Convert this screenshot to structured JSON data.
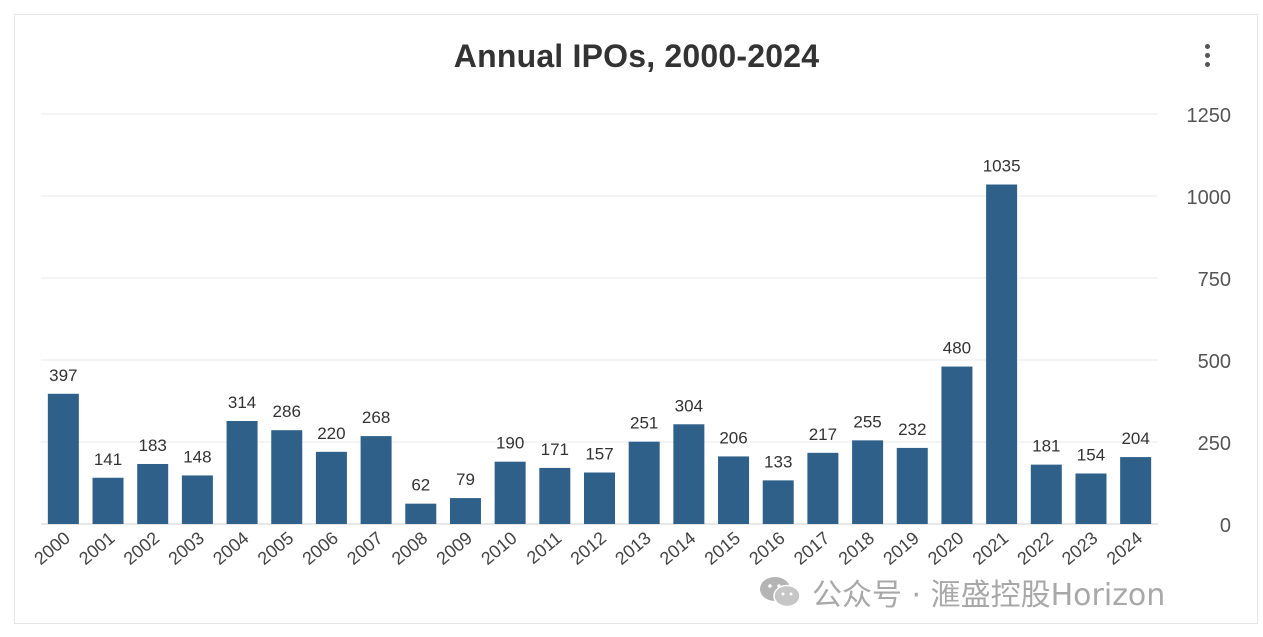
{
  "chart_data": {
    "type": "bar",
    "title": "Annual IPOs, 2000-2024",
    "xlabel": "",
    "ylabel": "",
    "categories": [
      "2000",
      "2001",
      "2002",
      "2003",
      "2004",
      "2005",
      "2006",
      "2007",
      "2008",
      "2009",
      "2010",
      "2011",
      "2012",
      "2013",
      "2014",
      "2015",
      "2016",
      "2017",
      "2018",
      "2019",
      "2020",
      "2021",
      "2022",
      "2023",
      "2024"
    ],
    "values": [
      397,
      141,
      183,
      148,
      314,
      286,
      220,
      268,
      62,
      79,
      190,
      171,
      157,
      251,
      304,
      206,
      133,
      217,
      255,
      232,
      480,
      1035,
      181,
      154,
      204
    ],
    "ylim": [
      0,
      1250
    ],
    "yticks": [
      0,
      250,
      500,
      750,
      1000,
      1250
    ],
    "y_axis_side": "right",
    "grid": true,
    "data_labels": true,
    "bar_color": "#2e6089"
  },
  "watermark": {
    "text": "公众号 · 滙盛控股Horizon",
    "logo": "wechat-icon"
  },
  "menu": {
    "icon": "more-vertical-icon"
  }
}
